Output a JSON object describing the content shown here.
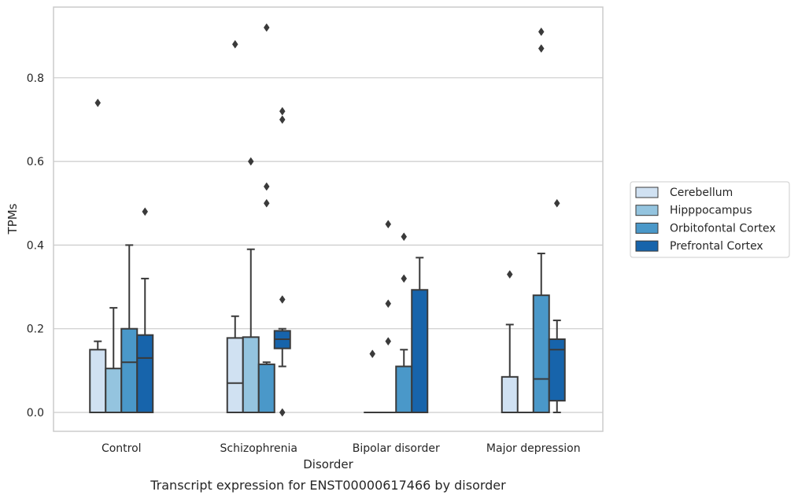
{
  "chart_data": {
    "type": "boxplot",
    "title": "",
    "caption": "Transcript expression for ENST00000617466 by disorder",
    "xlabel": "Disorder",
    "ylabel": "TPMs",
    "ylim": [
      -0.045,
      0.97
    ],
    "yticks": [
      0.0,
      0.2,
      0.4,
      0.6,
      0.8
    ],
    "ytick_labels": [
      "0.0",
      "0.2",
      "0.4",
      "0.6",
      "0.8"
    ],
    "grid": "horizontal",
    "legend_position": "right",
    "categories": [
      "Control",
      "Schizophrenia",
      "Bipolar disorder",
      "Major depression"
    ],
    "series": [
      {
        "name": "Cerebellum",
        "color": "#d0e1f2",
        "boxes": [
          {
            "q1": 0.0,
            "median": 0.0,
            "q3": 0.15,
            "whislo": 0.0,
            "whishi": 0.17,
            "fliers": [
              0.74
            ]
          },
          {
            "q1": 0.0,
            "median": 0.07,
            "q3": 0.178,
            "whislo": 0.0,
            "whishi": 0.23,
            "fliers": [
              0.88
            ]
          },
          {
            "q1": 0.0,
            "median": 0.0,
            "q3": 0.0,
            "whislo": 0.0,
            "whishi": 0.0,
            "fliers": [
              0.14
            ]
          },
          {
            "q1": 0.0,
            "median": 0.0,
            "q3": 0.085,
            "whislo": 0.0,
            "whishi": 0.21,
            "fliers": [
              0.33
            ]
          }
        ]
      },
      {
        "name": "Hipppocampus",
        "color": "#94c4df",
        "boxes": [
          {
            "q1": 0.0,
            "median": 0.0,
            "q3": 0.105,
            "whislo": 0.0,
            "whishi": 0.25,
            "fliers": []
          },
          {
            "q1": 0.0,
            "median": 0.0,
            "q3": 0.18,
            "whislo": 0.0,
            "whishi": 0.39,
            "fliers": [
              0.6
            ]
          },
          {
            "q1": 0.0,
            "median": 0.0,
            "q3": 0.0,
            "whislo": 0.0,
            "whishi": 0.0,
            "fliers": [
              0.17,
              0.26,
              0.45
            ]
          },
          {
            "q1": 0.0,
            "median": 0.0,
            "q3": 0.0,
            "whislo": 0.0,
            "whishi": 0.0,
            "fliers": []
          }
        ]
      },
      {
        "name": "Orbitofontal Cortex",
        "color": "#4a98c9",
        "boxes": [
          {
            "q1": 0.0,
            "median": 0.12,
            "q3": 0.2,
            "whislo": 0.0,
            "whishi": 0.4,
            "fliers": []
          },
          {
            "q1": 0.0,
            "median": 0.0,
            "q3": 0.115,
            "whislo": 0.0,
            "whishi": 0.12,
            "fliers": [
              0.5,
              0.54,
              0.92
            ]
          },
          {
            "q1": 0.0,
            "median": 0.0,
            "q3": 0.11,
            "whislo": 0.0,
            "whishi": 0.15,
            "fliers": [
              0.32,
              0.42
            ]
          },
          {
            "q1": 0.0,
            "median": 0.08,
            "q3": 0.28,
            "whislo": 0.0,
            "whishi": 0.38,
            "fliers": [
              0.87,
              0.91
            ]
          }
        ]
      },
      {
        "name": "Prefrontal Cortex",
        "color": "#1764ab",
        "boxes": [
          {
            "q1": 0.0,
            "median": 0.13,
            "q3": 0.185,
            "whislo": 0.0,
            "whishi": 0.32,
            "fliers": [
              0.48
            ]
          },
          {
            "q1": 0.153,
            "median": 0.175,
            "q3": 0.195,
            "whislo": 0.11,
            "whishi": 0.2,
            "fliers": [
              0.0,
              0.27,
              0.7,
              0.72
            ]
          },
          {
            "q1": 0.0,
            "median": 0.0,
            "q3": 0.293,
            "whislo": 0.0,
            "whishi": 0.37,
            "fliers": []
          },
          {
            "q1": 0.028,
            "median": 0.15,
            "q3": 0.175,
            "whislo": 0.0,
            "whishi": 0.22,
            "fliers": [
              0.5
            ]
          }
        ]
      }
    ]
  }
}
